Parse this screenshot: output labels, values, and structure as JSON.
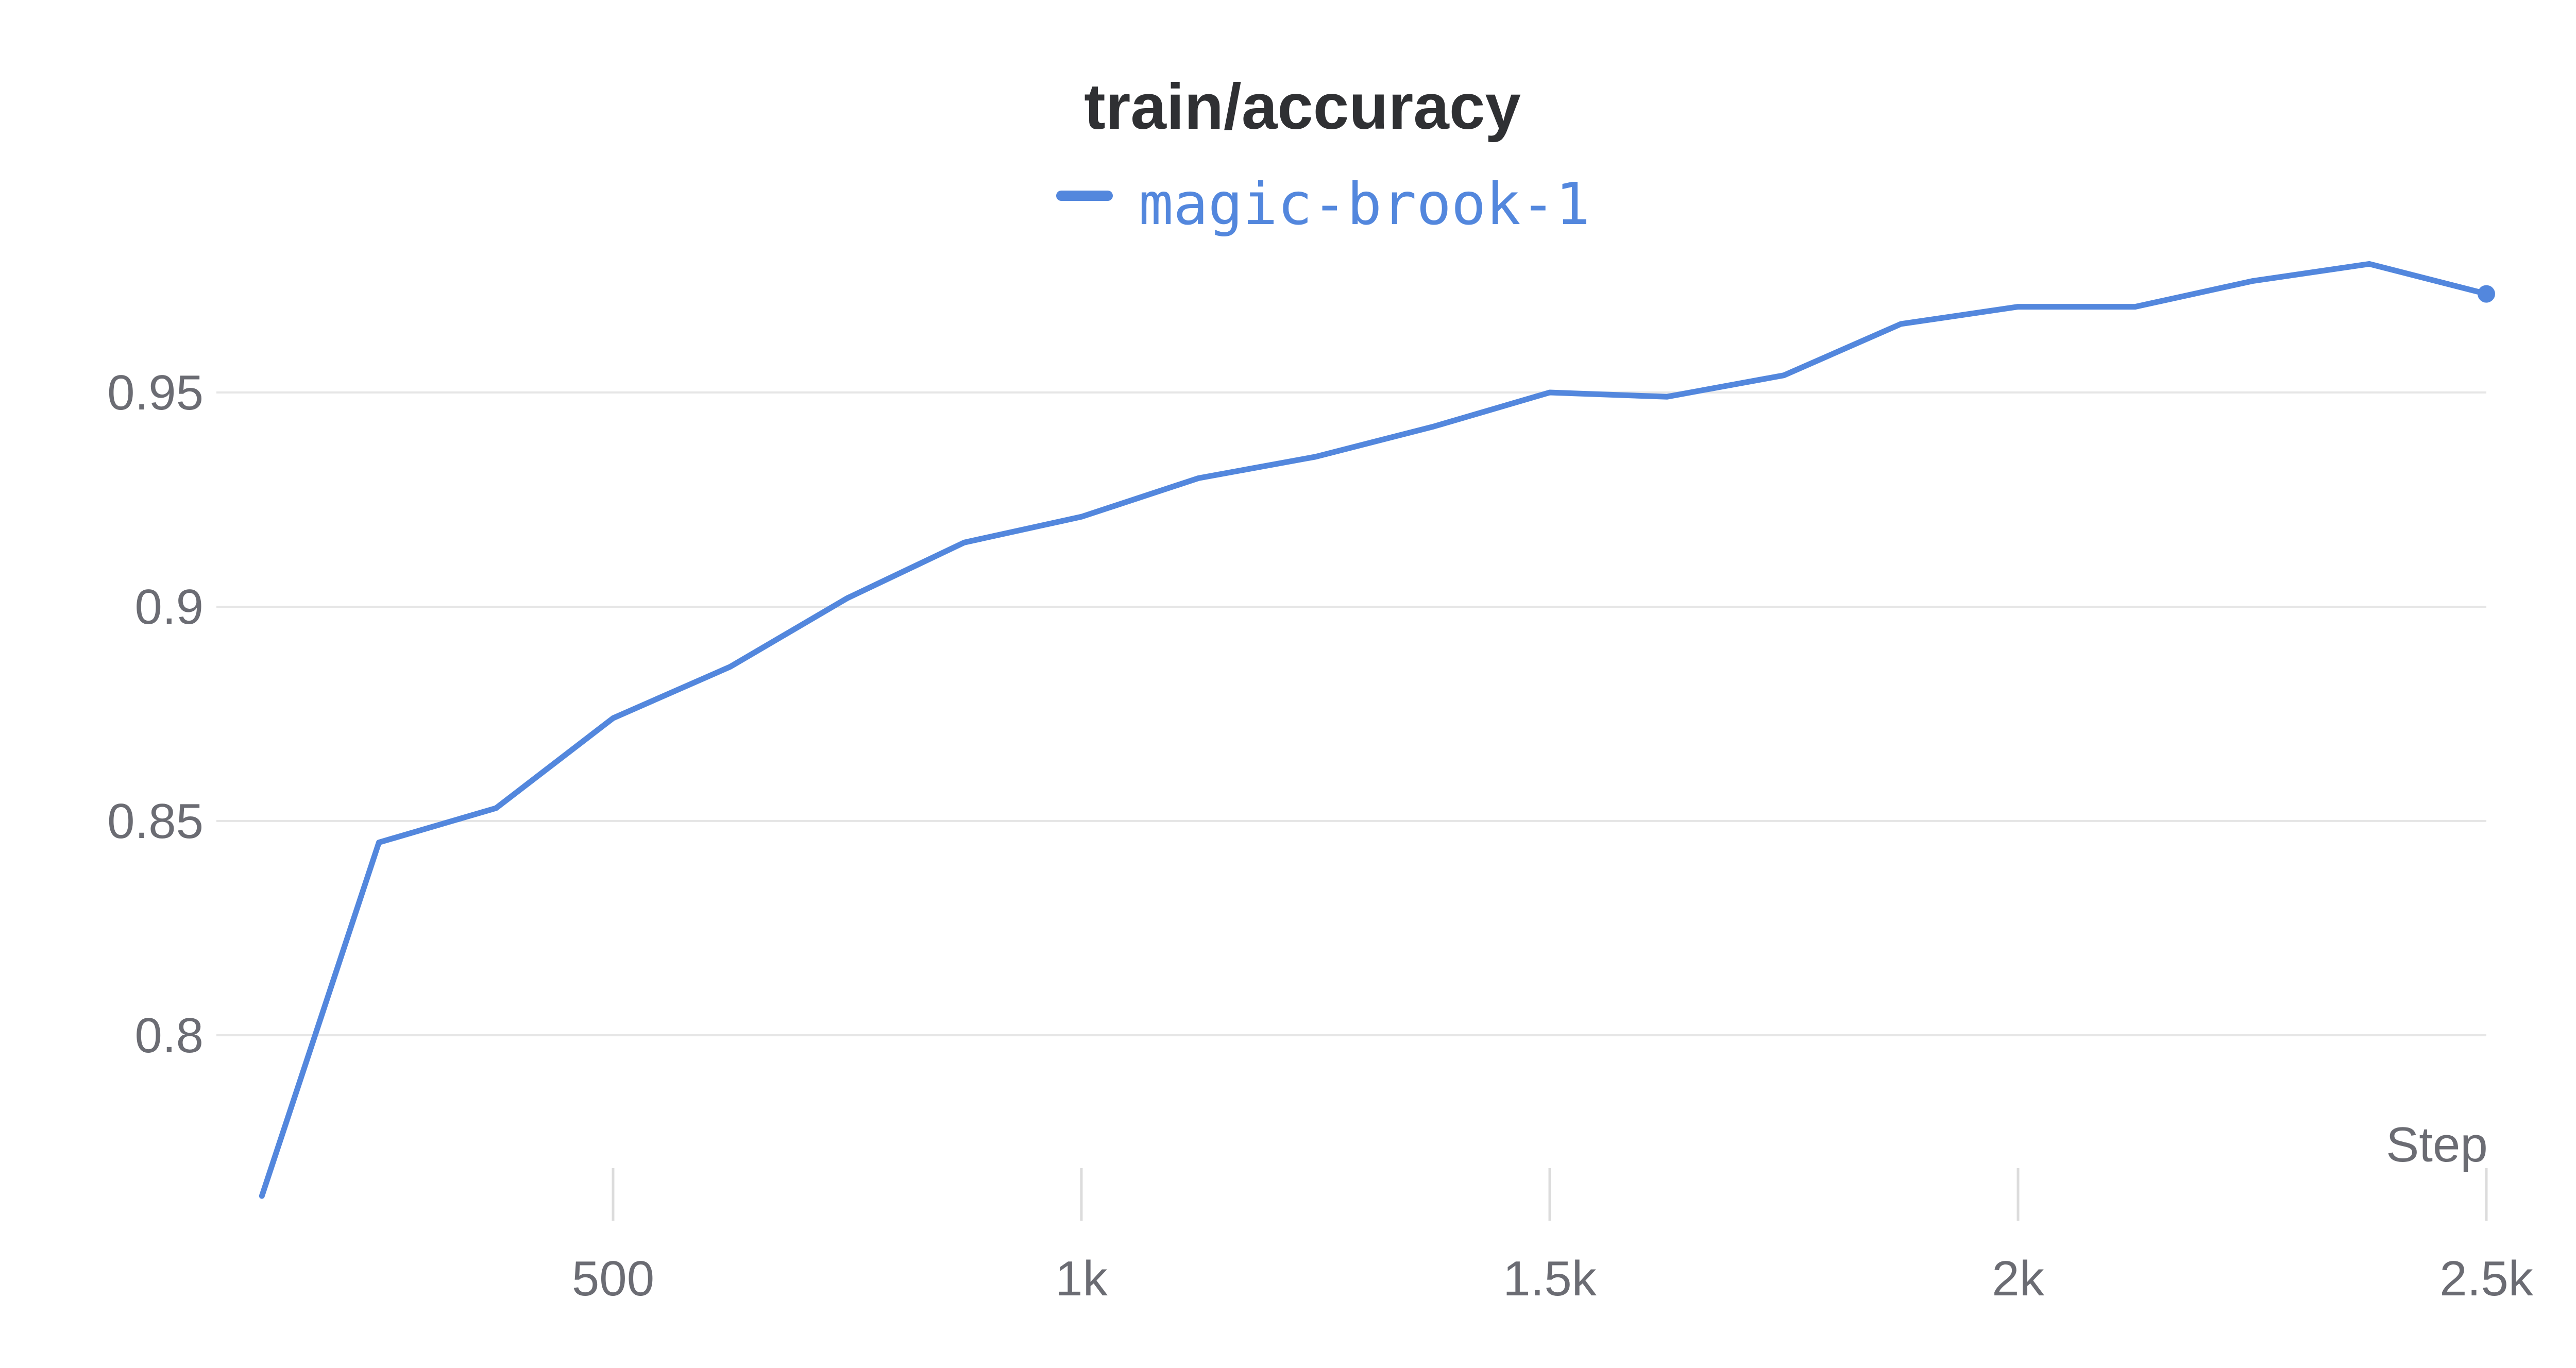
{
  "chart_data": {
    "type": "line",
    "title": "train/accuracy",
    "xlabel": "Step",
    "ylabel": "",
    "xlim": [
      110,
      2500
    ],
    "ylim": [
      0.7625,
      0.99
    ],
    "x_ticks": [
      {
        "value": 500,
        "label": "500"
      },
      {
        "value": 1000,
        "label": "1k"
      },
      {
        "value": 1500,
        "label": "1.5k"
      },
      {
        "value": 2000,
        "label": "2k"
      },
      {
        "value": 2500,
        "label": "2.5k"
      }
    ],
    "y_ticks": [
      {
        "value": 0.8,
        "label": "0.8"
      },
      {
        "value": 0.85,
        "label": "0.85"
      },
      {
        "value": 0.9,
        "label": "0.9"
      },
      {
        "value": 0.95,
        "label": "0.95"
      }
    ],
    "grid": true,
    "legend_position": "top-center",
    "series": [
      {
        "name": "magic-brook-1",
        "color": "#5387dd",
        "x": [
          125,
          250,
          375,
          500,
          625,
          750,
          875,
          1000,
          1125,
          1250,
          1375,
          1500,
          1625,
          1750,
          1875,
          2000,
          2125,
          2250,
          2375,
          2500
        ],
        "y": [
          0.7625,
          0.845,
          0.853,
          0.874,
          0.886,
          0.902,
          0.915,
          0.921,
          0.93,
          0.935,
          0.942,
          0.95,
          0.949,
          0.954,
          0.966,
          0.97,
          0.97,
          0.976,
          0.98,
          0.973
        ]
      }
    ]
  },
  "colors": {
    "gridline": "#e6e6e6",
    "tick_mark": "#dcdcdc",
    "tick_text": "#6b6c73",
    "title_text": "#2f3033"
  }
}
